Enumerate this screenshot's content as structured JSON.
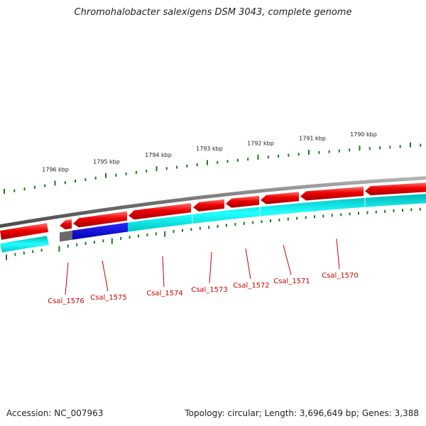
{
  "title": "Chromohalobacter salexigens DSM 3043, complete genome",
  "footer": {
    "accession": "Accession: NC_007963",
    "topology": "Topology: circular; Length: 3,696,649 bp; Genes: 3,388"
  },
  "colors": {
    "backbone": "#7a7a7a",
    "forward_gene": "#ee0000",
    "reverse_gene": "#00dddd",
    "highlight_gene": "#0000dd",
    "tick": "#1a7a1a",
    "label": "#cc0000"
  },
  "kbp_ticks": [
    "1796 kbp",
    "1795 kbp",
    "1794 kbp",
    "1793 kbp",
    "1792 kbp",
    "1791 kbp",
    "1790 kbp"
  ],
  "genes": [
    "Csal_1576",
    "Csal_1575",
    "Csal_1574",
    "Csal_1573",
    "Csal_1572",
    "Csal_1571",
    "Csal_1570"
  ]
}
